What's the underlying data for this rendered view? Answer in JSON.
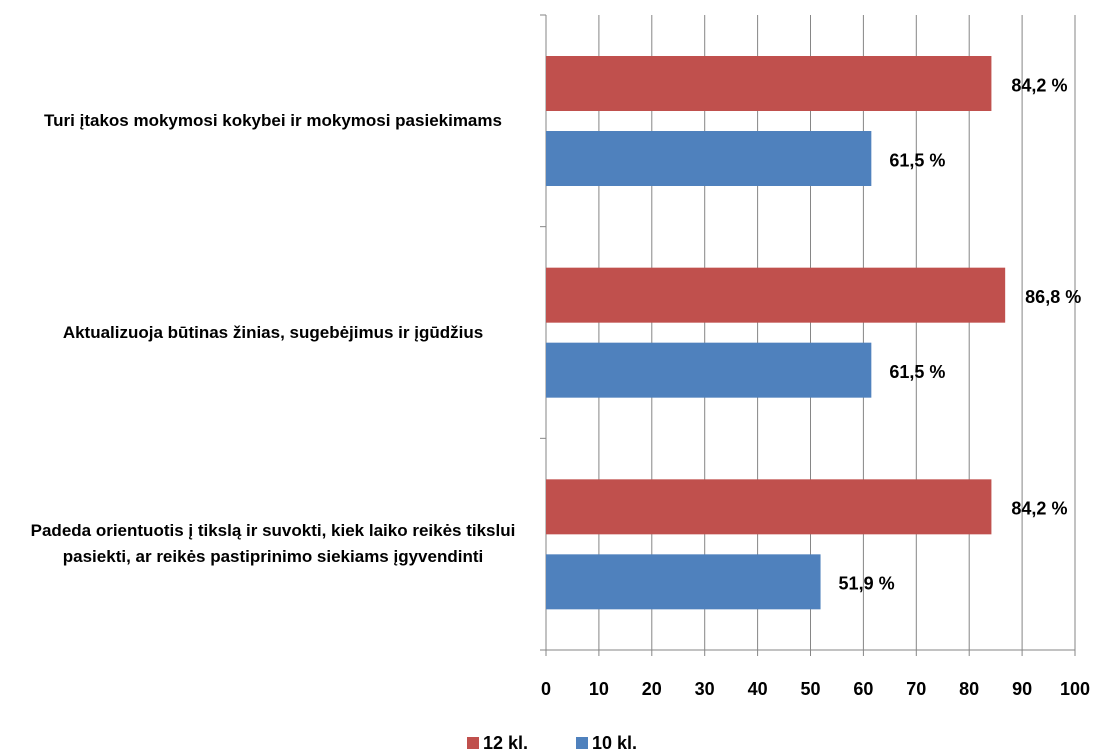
{
  "chart_data": {
    "type": "hbar",
    "categories": [
      "Turi įtakos mokymosi kokybei ir mokymosi pasiekimams",
      "Aktualizuoja būtinas žinias, sugebėjimus ir įgūdžius",
      "Padeda orientuotis į tikslą ir suvokti, kiek laiko reikės tikslui pasiekti, ar reikės pastiprinimo siekiams įgyvendinti"
    ],
    "series": [
      {
        "name": "12 kl.",
        "color": "#c0504d",
        "values": [
          84.2,
          86.8,
          84.2
        ],
        "value_labels": [
          "84,2 %",
          "86,8 %",
          "84,2 %"
        ]
      },
      {
        "name": "10 kl.",
        "color": "#4f81bd",
        "values": [
          61.5,
          61.5,
          51.9
        ],
        "value_labels": [
          "61,5 %",
          "61,5 %",
          "51,9 %"
        ]
      }
    ],
    "xlim": [
      0,
      100
    ],
    "xticks": [
      0,
      10,
      20,
      30,
      40,
      50,
      60,
      70,
      80,
      90,
      100
    ],
    "grid": true,
    "legend": "bottom"
  }
}
